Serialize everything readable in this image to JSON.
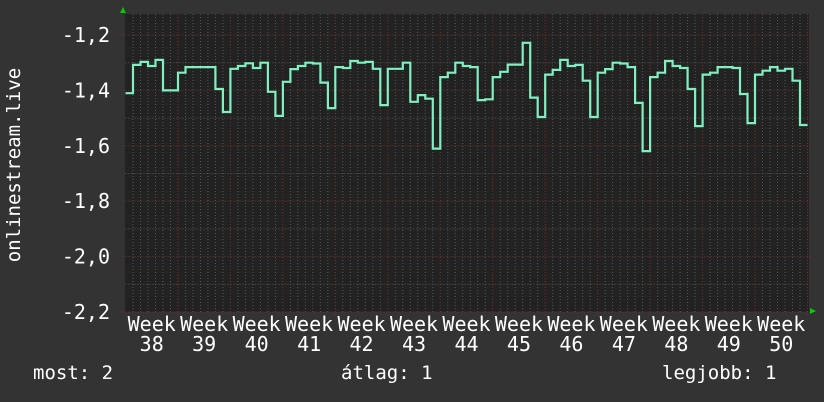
{
  "chart_data": {
    "type": "line",
    "step": true,
    "ylabel": "onlinestream.live",
    "xlabel": "",
    "ylim": [
      -2.22,
      -1.124
    ],
    "yticks": [
      -1.2,
      -1.4,
      -1.6,
      -1.8,
      -2.0,
      -2.2
    ],
    "ytick_labels": [
      "-1,2",
      "-1,4",
      "-1,6",
      "-1,8",
      "-2,0",
      "-2,2"
    ],
    "xtick_labels": [
      "Week 38",
      "Week 39",
      "Week 40",
      "Week 41",
      "Week 42",
      "Week 43",
      "Week 44",
      "Week 45",
      "Week 46",
      "Week 47",
      "Week 48",
      "Week 49",
      "Week 50"
    ],
    "grid": true,
    "line_color": "#80f0c0",
    "values": [
      -1.41,
      -1.308,
      -1.297,
      -1.312,
      -1.29,
      -1.4,
      -1.4,
      -1.336,
      -1.316,
      -1.316,
      -1.316,
      -1.316,
      -1.395,
      -1.478,
      -1.322,
      -1.312,
      -1.302,
      -1.319,
      -1.3,
      -1.405,
      -1.492,
      -1.369,
      -1.323,
      -1.312,
      -1.3,
      -1.303,
      -1.372,
      -1.464,
      -1.316,
      -1.319,
      -1.294,
      -1.3,
      -1.297,
      -1.322,
      -1.453,
      -1.322,
      -1.322,
      -1.3,
      -1.441,
      -1.417,
      -1.43,
      -1.61,
      -1.352,
      -1.336,
      -1.3,
      -1.312,
      -1.316,
      -1.435,
      -1.432,
      -1.352,
      -1.333,
      -1.307,
      -1.307,
      -1.228,
      -1.426,
      -1.496,
      -1.343,
      -1.326,
      -1.29,
      -1.312,
      -1.308,
      -1.365,
      -1.496,
      -1.336,
      -1.323,
      -1.3,
      -1.303,
      -1.316,
      -1.445,
      -1.619,
      -1.352,
      -1.336,
      -1.294,
      -1.312,
      -1.319,
      -1.395,
      -1.529,
      -1.343,
      -1.336,
      -1.316,
      -1.316,
      -1.319,
      -1.413,
      -1.518,
      -1.343,
      -1.329,
      -1.316,
      -1.329,
      -1.322,
      -1.365,
      -1.525
    ]
  },
  "legend": {
    "current": "most: 2",
    "average": "átlag: 1",
    "max": "legjobb: 1"
  },
  "colors": {
    "background": "#333333",
    "plot": "#222222",
    "major_grid": "#7a3030",
    "minor_grid": "#555555",
    "arrow": "#00cc00"
  }
}
